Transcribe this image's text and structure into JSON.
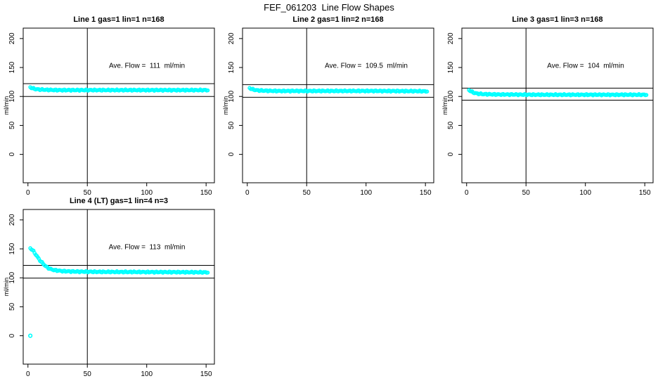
{
  "page_title": "FEF_061203  Line Flow Shapes",
  "chart_data": {
    "type": "scatter",
    "figure_title": "FEF_061203  Line Flow Shapes",
    "ylabel": "ml/min",
    "xticks": [
      0,
      50,
      100,
      150
    ],
    "yticks": [
      0,
      50,
      100,
      150,
      200
    ],
    "xlim": [
      -4,
      157
    ],
    "ylim": [
      -49,
      218
    ],
    "vline_x": 50,
    "point_color": "#00ffff",
    "axis_color": "#000000",
    "background_color": "#ffffff",
    "panels": [
      {
        "title": "Line 1 gas=1 lin=1 n=168",
        "annotation": "Ave. Flow =  111  ml/min",
        "ave_flow": 111,
        "n": 168,
        "ref_lines": [
          122.1,
          99.9
        ],
        "keypoints": [
          [
            2,
            116
          ],
          [
            3,
            115
          ],
          [
            4,
            114
          ],
          [
            5,
            113.5
          ],
          [
            7,
            112.5
          ],
          [
            10,
            112
          ],
          [
            15,
            111.5
          ],
          [
            25,
            111
          ],
          [
            60,
            111
          ],
          [
            110,
            111
          ],
          [
            152,
            111
          ]
        ],
        "outliers": []
      },
      {
        "title": "Line 2 gas=1 lin=2 n=168",
        "annotation": "Ave. Flow =  109.5  ml/min",
        "ave_flow": 109.5,
        "n": 168,
        "ref_lines": [
          120.5,
          98.6
        ],
        "keypoints": [
          [
            2,
            114.5
          ],
          [
            3,
            113.5
          ],
          [
            4,
            112.5
          ],
          [
            6,
            111.5
          ],
          [
            9,
            110.5
          ],
          [
            14,
            110
          ],
          [
            25,
            109.5
          ],
          [
            60,
            109.5
          ],
          [
            110,
            109.5
          ],
          [
            152,
            109
          ]
        ],
        "outliers": []
      },
      {
        "title": "Line 3 gas=1 lin=3 n=168",
        "annotation": "Ave. Flow =  104  ml/min",
        "ave_flow": 104,
        "n": 168,
        "ref_lines": [
          114.4,
          93.6
        ],
        "keypoints": [
          [
            2,
            111
          ],
          [
            3,
            110
          ],
          [
            4,
            108.5
          ],
          [
            6,
            106.5
          ],
          [
            9,
            105
          ],
          [
            14,
            104
          ],
          [
            25,
            103.5
          ],
          [
            60,
            103
          ],
          [
            110,
            103
          ],
          [
            152,
            103
          ]
        ],
        "outliers": []
      },
      {
        "title": "Line 4 (LT) gas=1 lin=4 n=3",
        "annotation": "Ave. Flow =  113  ml/min",
        "ave_flow": 113,
        "n": 3,
        "ref_lines": [
          121.5,
          99.5
        ],
        "keypoints": [
          [
            2,
            151
          ],
          [
            2.5,
            150
          ],
          [
            3,
            149.5
          ],
          [
            4,
            147.5
          ],
          [
            5,
            145
          ],
          [
            6,
            142
          ],
          [
            7,
            139
          ],
          [
            8,
            136
          ],
          [
            9,
            133
          ],
          [
            10,
            130.5
          ],
          [
            11,
            128
          ],
          [
            12,
            126
          ],
          [
            13,
            124
          ],
          [
            14,
            122
          ],
          [
            15,
            120
          ],
          [
            16,
            118.5
          ],
          [
            17,
            117
          ],
          [
            18,
            116
          ],
          [
            20,
            114.5
          ],
          [
            22,
            113.5
          ],
          [
            25,
            112.5
          ],
          [
            30,
            111.5
          ],
          [
            40,
            110.8
          ],
          [
            60,
            110.3
          ],
          [
            100,
            110
          ],
          [
            130,
            109.8
          ],
          [
            152,
            109.5
          ]
        ],
        "outliers": [
          [
            2,
            0
          ]
        ]
      }
    ]
  }
}
